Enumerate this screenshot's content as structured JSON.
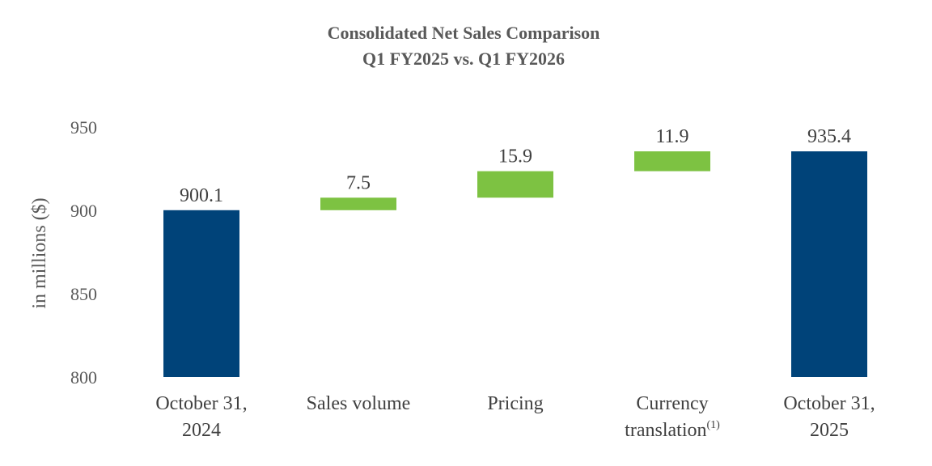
{
  "chart_data": {
    "type": "waterfall",
    "title": "Consolidated Net Sales Comparison",
    "subtitle": "Q1 FY2025 vs. Q1 FY2026",
    "ylabel": "in millions ($)",
    "xlabel": "",
    "ylim": [
      800,
      950
    ],
    "yticks": [
      800,
      850,
      900,
      950
    ],
    "grid": false,
    "categories": [
      {
        "lines": [
          "October 31,",
          "2024"
        ],
        "superscript": ""
      },
      {
        "lines": [
          "Sales volume"
        ],
        "superscript": ""
      },
      {
        "lines": [
          "Pricing"
        ],
        "superscript": ""
      },
      {
        "lines": [
          "Currency",
          "translation"
        ],
        "superscript": "(1)"
      },
      {
        "lines": [
          "October 31,",
          "2025"
        ],
        "superscript": ""
      }
    ],
    "bars": [
      {
        "kind": "total",
        "start": 800,
        "end": 900.1,
        "label": "900.1"
      },
      {
        "kind": "delta",
        "start": 900.1,
        "end": 907.6,
        "label": "7.5"
      },
      {
        "kind": "delta",
        "start": 907.6,
        "end": 923.5,
        "label": "15.9"
      },
      {
        "kind": "delta",
        "start": 923.5,
        "end": 935.4,
        "label": "11.9"
      },
      {
        "kind": "total",
        "start": 800,
        "end": 935.4,
        "label": "935.4"
      }
    ],
    "colors": {
      "total": "#004379",
      "delta": "#7DC242"
    }
  }
}
